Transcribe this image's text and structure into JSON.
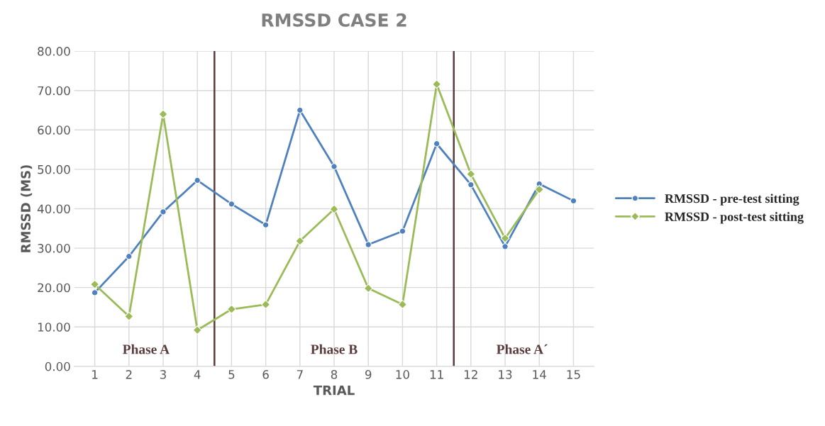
{
  "chart_data": {
    "type": "line",
    "title": "RMSSD CASE 2",
    "xlabel": "TRIAL",
    "ylabel": "RMSSD (MS)",
    "categories": [
      "1",
      "2",
      "3",
      "4",
      "5",
      "6",
      "7",
      "8",
      "9",
      "10",
      "11",
      "12",
      "13",
      "14",
      "15"
    ],
    "series": [
      {
        "name": "RMSSD - pre-test sitting",
        "color": "#4f81bd",
        "marker": "circle",
        "values": [
          18.7,
          27.9,
          39.2,
          47.2,
          41.2,
          35.9,
          65.0,
          50.7,
          30.9,
          34.3,
          56.5,
          46.1,
          30.4,
          46.3,
          42.0
        ]
      },
      {
        "name": "RMSSD - post-test sitting",
        "color": "#9bbb59",
        "marker": "diamond",
        "values": [
          20.8,
          12.7,
          64.0,
          9.2,
          14.5,
          15.7,
          31.8,
          39.9,
          19.8,
          15.7,
          71.6,
          48.8,
          32.5,
          44.9,
          null
        ]
      }
    ],
    "ylim": [
      0,
      80
    ],
    "yticks": [
      {
        "value": 0,
        "label": "0.00"
      },
      {
        "value": 10,
        "label": "10.00"
      },
      {
        "value": 20,
        "label": "20.00"
      },
      {
        "value": 30,
        "label": "30.00"
      },
      {
        "value": 40,
        "label": "40.00"
      },
      {
        "value": 50,
        "label": "50.00"
      },
      {
        "value": 60,
        "label": "60.00"
      },
      {
        "value": 70,
        "label": "70.00"
      },
      {
        "value": 80,
        "label": "80.00"
      }
    ],
    "annotations": [
      "Phase A",
      "Phase B",
      "Phase A´"
    ],
    "grid": true,
    "legend": "right",
    "line_style": "solid"
  }
}
